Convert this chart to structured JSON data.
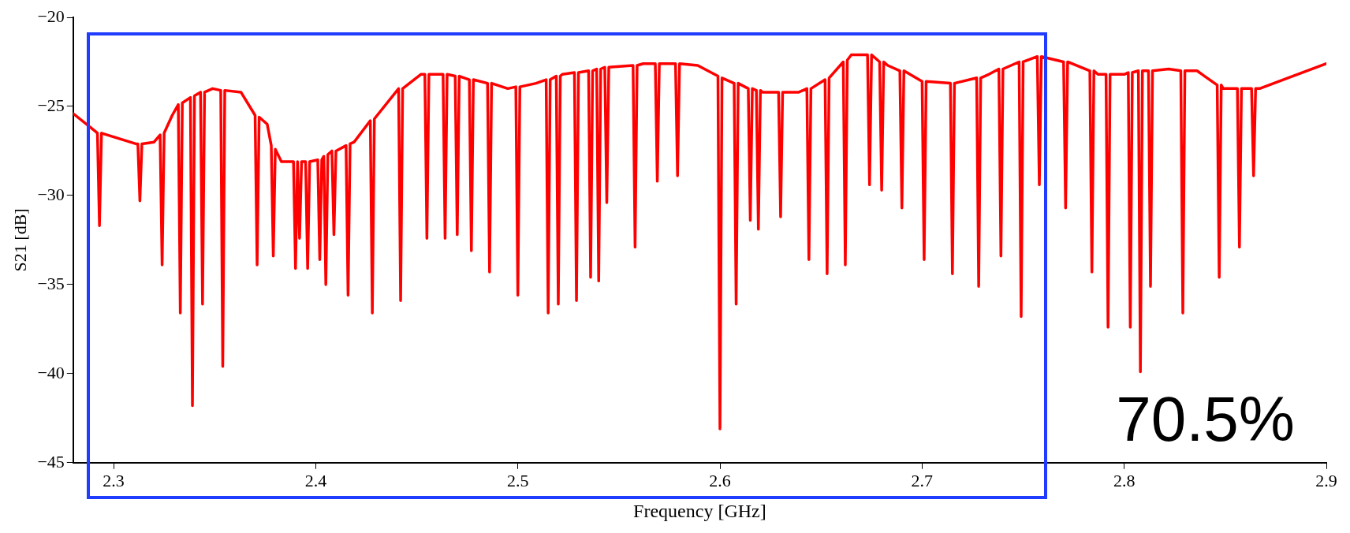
{
  "chart_data": {
    "type": "line",
    "xlabel": "Frequency [GHz]",
    "ylabel": "S21 [dB]",
    "xlim": [
      2.28,
      2.9
    ],
    "xticks": [
      2.3,
      2.4,
      2.5,
      2.6,
      2.7,
      2.8,
      2.9
    ],
    "ylim": [
      -45,
      -20
    ],
    "yticks": [
      {
        "value": -45,
        "label": "−45"
      },
      {
        "value": -40,
        "label": "−40"
      },
      {
        "value": -35,
        "label": "−35"
      },
      {
        "value": -30,
        "label": "−30"
      },
      {
        "value": -25,
        "label": "−25"
      },
      {
        "value": -20,
        "label": "−20"
      }
    ],
    "grid": false,
    "legend": false,
    "marker": "none",
    "line_style": "solid",
    "annotations": [
      "70.5%"
    ],
    "series": [
      {
        "color": "#ff0000",
        "x": [
          2.28,
          2.291,
          2.292,
          2.293,
          2.294,
          2.311,
          2.312,
          2.313,
          2.314,
          2.32,
          2.323,
          2.324,
          2.325,
          2.329,
          2.332,
          2.333,
          2.334,
          2.338,
          2.339,
          2.34,
          2.343,
          2.344,
          2.345,
          2.349,
          2.353,
          2.354,
          2.355,
          2.363,
          2.37,
          2.371,
          2.372,
          2.376,
          2.378,
          2.379,
          2.38,
          2.383,
          2.389,
          2.39,
          2.391,
          2.391,
          2.392,
          2.393,
          2.395,
          2.396,
          2.397,
          2.401,
          2.402,
          2.403,
          2.404,
          2.405,
          2.406,
          2.408,
          2.409,
          2.41,
          2.415,
          2.416,
          2.417,
          2.419,
          2.427,
          2.428,
          2.429,
          2.441,
          2.442,
          2.443,
          2.452,
          2.454,
          2.455,
          2.456,
          2.463,
          2.464,
          2.465,
          2.469,
          2.47,
          2.471,
          2.476,
          2.477,
          2.478,
          2.485,
          2.486,
          2.487,
          2.495,
          2.499,
          2.5,
          2.501,
          2.509,
          2.514,
          2.515,
          2.516,
          2.519,
          2.52,
          2.521,
          2.522,
          2.528,
          2.529,
          2.53,
          2.535,
          2.536,
          2.537,
          2.539,
          2.54,
          2.541,
          2.543,
          2.544,
          2.545,
          2.557,
          2.558,
          2.559,
          2.562,
          2.568,
          2.569,
          2.57,
          2.576,
          2.578,
          2.579,
          2.58,
          2.589,
          2.599,
          2.6,
          2.601,
          2.603,
          2.607,
          2.608,
          2.609,
          2.614,
          2.615,
          2.616,
          2.618,
          2.619,
          2.62,
          2.621,
          2.629,
          2.63,
          2.631,
          2.639,
          2.643,
          2.644,
          2.645,
          2.652,
          2.653,
          2.654,
          2.661,
          2.662,
          2.663,
          2.665,
          2.673,
          2.674,
          2.675,
          2.679,
          2.68,
          2.681,
          2.683,
          2.689,
          2.69,
          2.691,
          2.7,
          2.701,
          2.702,
          2.714,
          2.715,
          2.716,
          2.727,
          2.728,
          2.729,
          2.733,
          2.738,
          2.739,
          2.74,
          2.746,
          2.748,
          2.749,
          2.75,
          2.757,
          2.758,
          2.759,
          2.77,
          2.771,
          2.772,
          2.783,
          2.784,
          2.785,
          2.787,
          2.791,
          2.792,
          2.793,
          2.8,
          2.802,
          2.803,
          2.804,
          2.807,
          2.808,
          2.809,
          2.812,
          2.813,
          2.814,
          2.822,
          2.828,
          2.829,
          2.83,
          2.836,
          2.846,
          2.847,
          2.848,
          2.849,
          2.856,
          2.857,
          2.858,
          2.863,
          2.864,
          2.865,
          2.867,
          2.881,
          2.9
        ],
        "values": [
          -25.4,
          -26.4,
          -26.5,
          -31.7,
          -26.5,
          -27.1,
          -27.1,
          -30.3,
          -27.1,
          -27.0,
          -26.6,
          -33.9,
          -26.5,
          -25.5,
          -24.9,
          -36.6,
          -24.8,
          -24.5,
          -41.8,
          -24.4,
          -24.2,
          -36.1,
          -24.2,
          -24.0,
          -24.1,
          -39.6,
          -24.1,
          -24.2,
          -25.5,
          -33.9,
          -25.6,
          -26.0,
          -27.2,
          -33.4,
          -27.4,
          -28.1,
          -28.1,
          -34.1,
          -28.1,
          -28.1,
          -32.4,
          -28.1,
          -28.1,
          -34.1,
          -28.1,
          -28.0,
          -33.6,
          -28.0,
          -27.8,
          -35.0,
          -27.7,
          -27.5,
          -32.2,
          -27.5,
          -27.2,
          -35.6,
          -27.1,
          -27.0,
          -25.8,
          -36.6,
          -25.7,
          -24.0,
          -35.9,
          -24.0,
          -23.2,
          -23.2,
          -32.4,
          -23.2,
          -23.2,
          -32.4,
          -23.2,
          -23.3,
          -32.2,
          -23.3,
          -23.5,
          -33.1,
          -23.5,
          -23.7,
          -34.3,
          -23.7,
          -24.0,
          -23.9,
          -35.6,
          -23.9,
          -23.7,
          -23.5,
          -36.6,
          -23.5,
          -23.3,
          -36.1,
          -23.3,
          -23.2,
          -23.1,
          -35.9,
          -23.1,
          -23.0,
          -34.6,
          -23.0,
          -22.9,
          -34.8,
          -22.9,
          -22.8,
          -30.4,
          -22.8,
          -22.7,
          -32.9,
          -22.7,
          -22.6,
          -22.6,
          -29.2,
          -22.6,
          -22.6,
          -22.6,
          -28.9,
          -22.6,
          -22.7,
          -23.3,
          -43.1,
          -23.4,
          -23.5,
          -23.7,
          -36.1,
          -23.7,
          -24.0,
          -31.4,
          -24.0,
          -24.1,
          -31.9,
          -24.1,
          -24.2,
          -24.2,
          -31.2,
          -24.2,
          -24.2,
          -24.0,
          -33.6,
          -24.0,
          -23.5,
          -34.4,
          -23.4,
          -22.5,
          -33.9,
          -22.4,
          -22.1,
          -22.1,
          -29.4,
          -22.1,
          -22.5,
          -29.7,
          -22.5,
          -22.7,
          -23.0,
          -30.7,
          -23.0,
          -23.6,
          -33.6,
          -23.6,
          -23.7,
          -34.4,
          -23.7,
          -23.4,
          -35.1,
          -23.4,
          -23.2,
          -22.9,
          -33.4,
          -22.9,
          -22.6,
          -22.5,
          -36.8,
          -22.5,
          -22.2,
          -29.4,
          -22.2,
          -22.5,
          -30.7,
          -22.5,
          -23.0,
          -34.3,
          -23.0,
          -23.2,
          -23.2,
          -37.4,
          -23.2,
          -23.2,
          -23.1,
          -37.4,
          -23.1,
          -23.0,
          -39.9,
          -23.0,
          -23.0,
          -35.1,
          -23.0,
          -22.9,
          -23.0,
          -36.6,
          -23.0,
          -23.0,
          -23.8,
          -34.6,
          -23.8,
          -24.0,
          -24.0,
          -32.9,
          -24.0,
          -24.0,
          -28.9,
          -24.0,
          -24.0,
          -23.4,
          -22.6
        ]
      }
    ]
  }
}
